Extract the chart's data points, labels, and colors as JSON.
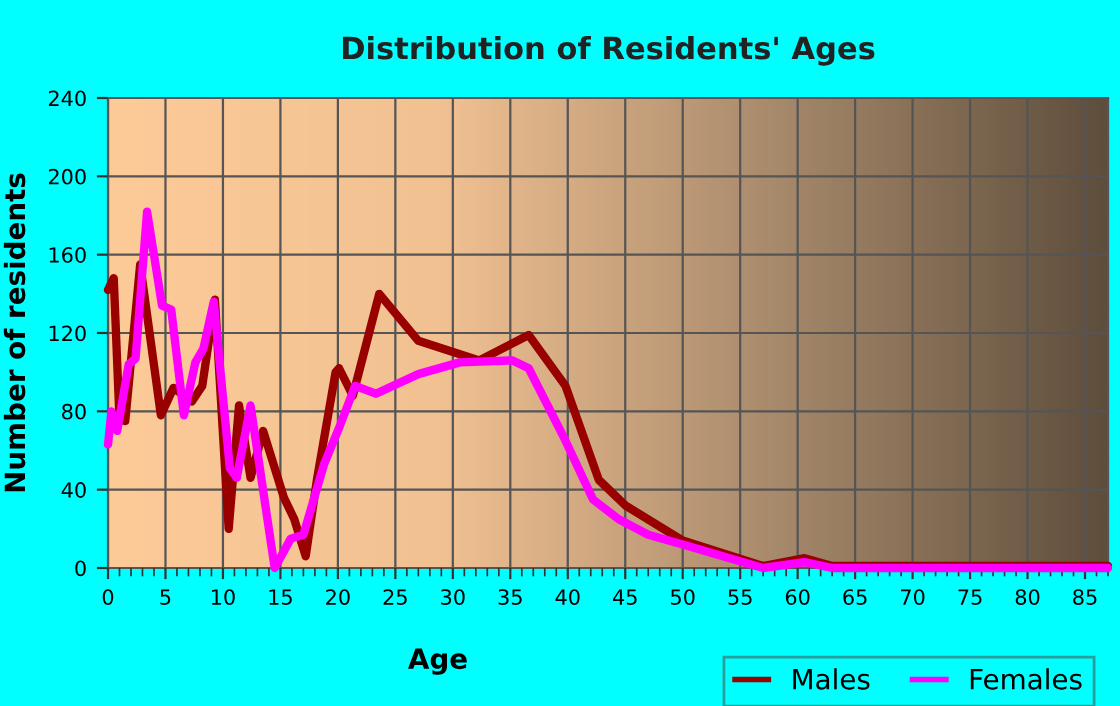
{
  "chart_data": {
    "type": "line",
    "title": "Distribution of Residents' Ages",
    "xlabel": "Age",
    "ylabel": "Number of residents",
    "xlim": [
      0,
      87
    ],
    "xticks": [
      0,
      5,
      10,
      15,
      20,
      25,
      30,
      35,
      40,
      45,
      50,
      55,
      60,
      65,
      70,
      75,
      80,
      85
    ],
    "ylim": [
      0,
      240
    ],
    "yticks": [
      0,
      40,
      80,
      120,
      160,
      200,
      240
    ],
    "grid": true,
    "legend": "bottom right",
    "marker": "none",
    "line_style": "solid",
    "series": [
      {
        "name": "Males",
        "color": "#990000",
        "x": [
          0,
          0.5,
          1,
          1.5,
          2.8,
          4.6,
          5.7,
          7.3,
          8.2,
          9.3,
          10.5,
          11.4,
          12.4,
          13.5,
          15.3,
          16.2,
          17.2,
          18.2,
          19.8,
          20.1,
          21.3,
          23.6,
          27,
          32.3,
          36.6,
          39.8,
          42.7,
          45,
          50,
          57,
          60.6,
          63,
          70,
          80,
          87
        ],
        "values": [
          142,
          148,
          76,
          75,
          155,
          78,
          92,
          85,
          93,
          137,
          20,
          83,
          46,
          70,
          36,
          25,
          6,
          46,
          100,
          102,
          88,
          140,
          116,
          106,
          119,
          93,
          45,
          32,
          14,
          1,
          5,
          1,
          1,
          1,
          1
        ]
      },
      {
        "name": "Females",
        "color": "#ff00ff",
        "x": [
          0,
          0.3,
          0.8,
          1.8,
          2.4,
          3.4,
          4.7,
          5.5,
          6.6,
          7.6,
          8.3,
          9.2,
          10.6,
          11.2,
          12.4,
          14.5,
          15.9,
          17,
          18.8,
          20.2,
          21.5,
          23.3,
          27,
          30.6,
          35.2,
          36.6,
          39.8,
          42.2,
          44.4,
          47,
          50,
          57,
          60.6,
          63,
          70,
          80,
          87
        ],
        "values": [
          63,
          80,
          70,
          104,
          107,
          182,
          134,
          132,
          78,
          105,
          112,
          136,
          51,
          46,
          83,
          0,
          15,
          17,
          53,
          73,
          93,
          89,
          99,
          105,
          106,
          102,
          65,
          35,
          25,
          17,
          12,
          0,
          3,
          0,
          0,
          0,
          0
        ]
      }
    ]
  }
}
